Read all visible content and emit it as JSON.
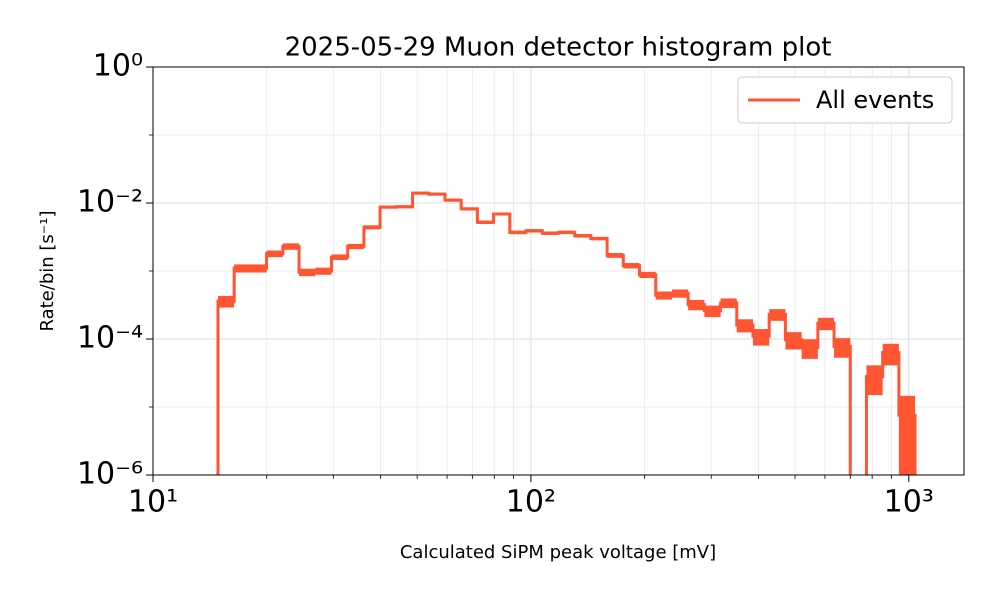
{
  "chart_data": {
    "type": "histogram",
    "title": "2025-05-29 Muon detector histogram plot",
    "xlabel": "Calculated SiPM peak voltage [mV]",
    "ylabel": "Rate/bin [s⁻¹]",
    "bins": [
      14.86,
      16.4,
      18.1,
      19.98,
      22.06,
      24.35,
      26.88,
      29.67,
      32.75,
      36.15,
      39.9,
      44.05,
      48.62,
      53.67,
      59.24,
      65.39,
      72.18,
      79.67,
      87.95,
      97.07,
      107.2,
      118.3,
      130.6,
      144.1,
      159.1,
      175.6,
      193.8,
      214.0,
      236.2,
      260.7,
      287.8,
      317.7,
      350.6,
      387.0,
      427.2,
      471.6,
      520.5,
      574.6,
      634.2,
      700.1,
      772.7,
      852.9,
      941.5,
      1039
    ],
    "series": [
      {
        "name": "All events",
        "color": "#ff5533",
        "values": [
          0.00036,
          0.0011,
          0.0011,
          0.0018,
          0.0023,
          0.00096,
          0.001,
          0.0016,
          0.0023,
          0.0044,
          0.0087,
          0.0088,
          0.014,
          0.0135,
          0.011,
          0.0082,
          0.0052,
          0.0069,
          0.0037,
          0.0039,
          0.0036,
          0.0037,
          0.0033,
          0.003,
          0.0017,
          0.0012,
          0.00088,
          0.00044,
          0.00047,
          0.00032,
          0.00026,
          0.00034,
          0.00016,
          0.00011,
          0.00023,
          9.8e-05,
          7.5e-05,
          0.00017,
          7.8e-05,
          0,
          2.8e-05,
          6.3e-05,
          7.6e-06
        ],
        "errors": [
          7e-05,
          0.00015,
          0.00015,
          0.0002,
          0.00025,
          0.00012,
          0.00012,
          0.00015,
          0.0002,
          0.0003,
          0.0004,
          0.0004,
          0.0005,
          0.0005,
          0.0004,
          0.00035,
          0.00028,
          0.00032,
          0.00022,
          0.00022,
          0.00021,
          0.00021,
          0.0002,
          0.00018,
          0.00014,
          0.00011,
          9e-05,
          6e-05,
          6.5e-05,
          5.5e-05,
          5e-05,
          5.5e-05,
          3.5e-05,
          3e-05,
          4.5e-05,
          2.8e-05,
          2.4e-05,
          3.5e-05,
          2.5e-05,
          0,
          1.3e-05,
          2.2e-05,
          7e-06
        ]
      }
    ],
    "xlim": [
      10,
      1400
    ],
    "ylim": [
      1e-06,
      1
    ],
    "xscale": "log",
    "yscale": "log",
    "xticks": [
      {
        "value": 10,
        "label": "10¹"
      },
      {
        "value": 100,
        "label": "10²"
      },
      {
        "value": 1000,
        "label": "10³"
      }
    ],
    "yticks": [
      {
        "value": 1e-06,
        "label": "10⁻⁶"
      },
      {
        "value": 0.0001,
        "label": "10⁻⁴"
      },
      {
        "value": 0.01,
        "label": "10⁻²"
      },
      {
        "value": 1,
        "label": "10⁰"
      }
    ],
    "xminorticks": [
      20,
      30,
      40,
      50,
      60,
      70,
      80,
      90,
      200,
      300,
      400,
      500,
      600,
      700,
      800,
      900
    ],
    "yminorticks": [
      1e-05,
      0.001,
      0.1
    ],
    "grid": true,
    "legend": "upper right"
  }
}
